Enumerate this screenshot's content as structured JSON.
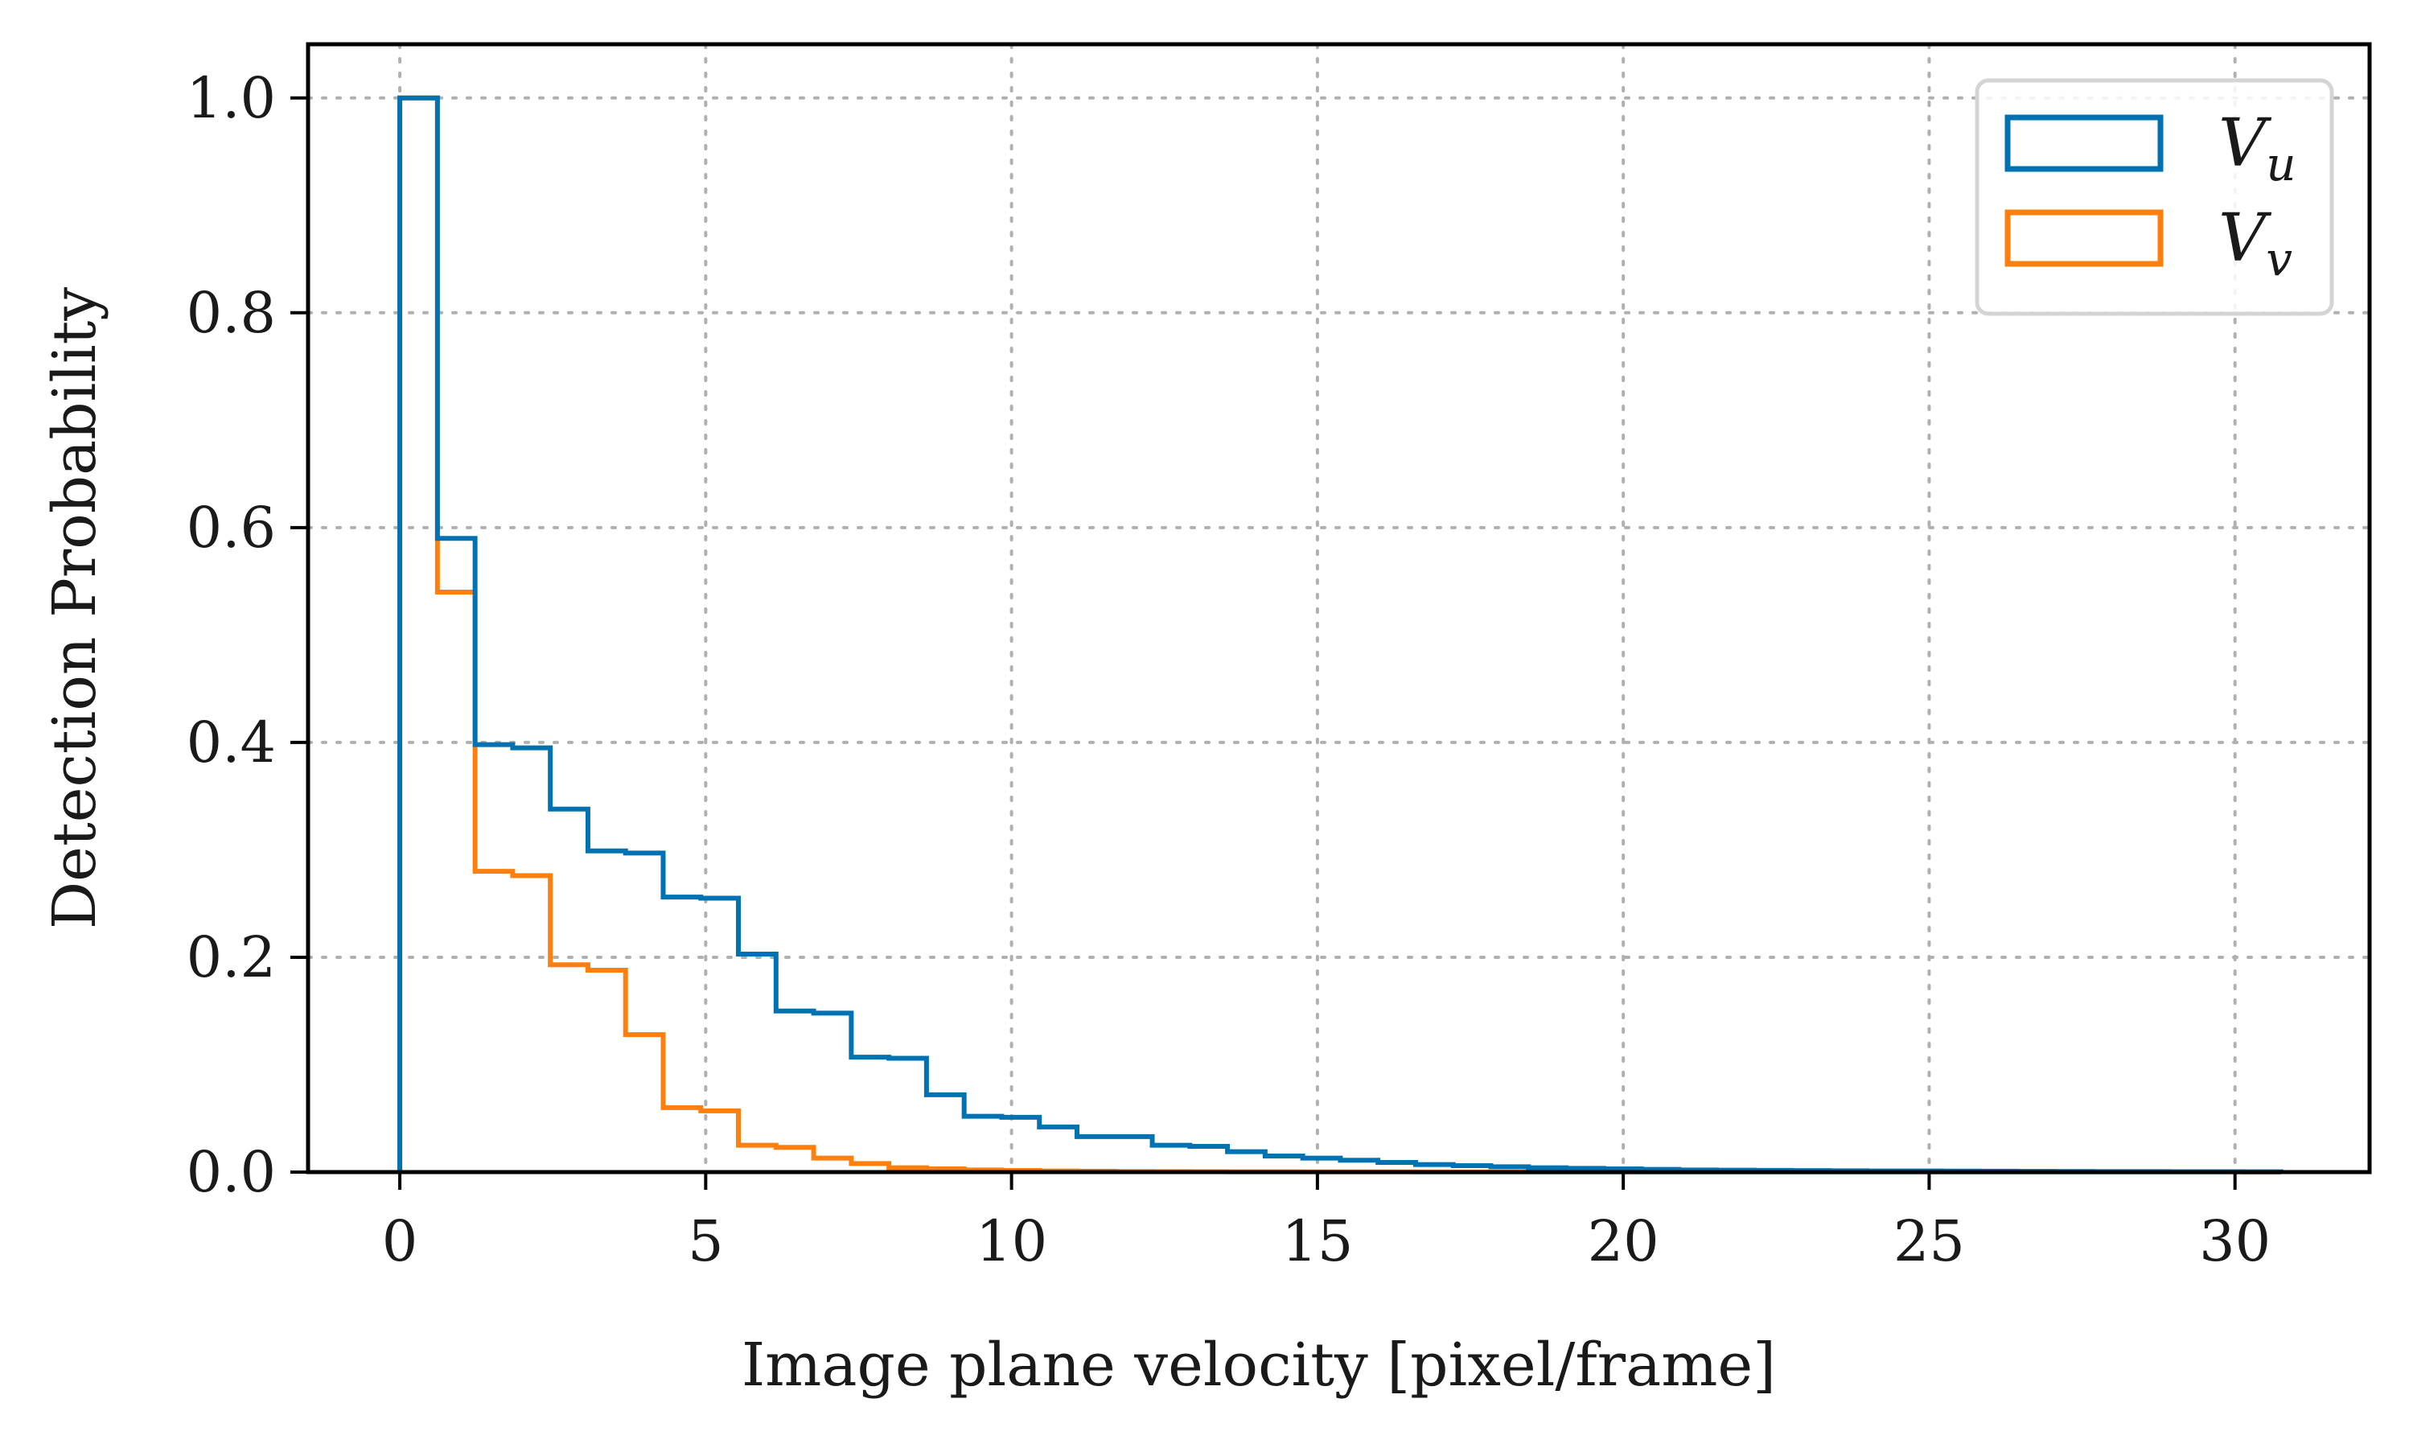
{
  "chart_data": {
    "type": "histogram-step",
    "title": "",
    "xlabel": "Image plane velocity [pixel/frame]",
    "ylabel": "Detection Probability",
    "xlim": [
      -1.5,
      32.2
    ],
    "ylim": [
      0,
      1.05
    ],
    "grid": true,
    "legend_position": "top-right",
    "xticks": [
      0,
      5,
      10,
      15,
      20,
      25,
      30
    ],
    "xtick_labels": [
      "0",
      "5",
      "10",
      "15",
      "20",
      "25",
      "30"
    ],
    "yticks": [
      0.0,
      0.2,
      0.4,
      0.6,
      0.8,
      1.0
    ],
    "ytick_labels": [
      "0.0",
      "0.2",
      "0.4",
      "0.6",
      "0.8",
      "1.0"
    ],
    "bin_edges": [
      0,
      0.615,
      1.23,
      1.845,
      2.46,
      3.075,
      3.69,
      4.305,
      4.92,
      5.535,
      6.15,
      6.765,
      7.38,
      7.995,
      8.61,
      9.225,
      9.84,
      10.455,
      11.07,
      11.685,
      12.3,
      12.915,
      13.53,
      14.145,
      14.76,
      15.375,
      15.99,
      16.605,
      17.22,
      17.835,
      18.45,
      19.065,
      19.68,
      20.295,
      20.91,
      21.525,
      22.14,
      22.755,
      23.37,
      23.985,
      24.6,
      25.215,
      25.83,
      26.445,
      27.06,
      27.675,
      28.29,
      28.905,
      29.52,
      30.135,
      30.75
    ],
    "series": [
      {
        "name": "V_u",
        "label_main": "V",
        "label_sub": "u",
        "color": "#0072b2",
        "values": [
          1.0,
          0.59,
          0.398,
          0.395,
          0.338,
          0.299,
          0.297,
          0.256,
          0.255,
          0.203,
          0.15,
          0.148,
          0.107,
          0.106,
          0.072,
          0.052,
          0.051,
          0.042,
          0.033,
          0.033,
          0.025,
          0.024,
          0.019,
          0.015,
          0.013,
          0.011,
          0.009,
          0.007,
          0.006,
          0.005,
          0.004,
          0.0035,
          0.003,
          0.0025,
          0.002,
          0.0018,
          0.0016,
          0.0014,
          0.0012,
          0.001,
          0.001,
          0.0009,
          0.0008,
          0.0007,
          0.0006,
          0.0005,
          0.0005,
          0.0004,
          0.0004,
          0.0003
        ]
      },
      {
        "name": "V_v",
        "label_main": "V",
        "label_sub": "v",
        "color": "#ff7f0e",
        "values": [
          1.0,
          0.54,
          0.28,
          0.276,
          0.193,
          0.188,
          0.128,
          0.06,
          0.057,
          0.025,
          0.023,
          0.013,
          0.008,
          0.004,
          0.003,
          0.002,
          0.0015,
          0.001,
          0.0008,
          0.0006,
          0.0005,
          0.0004,
          0.0003,
          0.0003,
          0.0002,
          0.0002,
          0.0002,
          0.0001,
          0.0001,
          0.0001,
          0.0001,
          0.0001,
          0.0001,
          0.0001,
          0.0001,
          0.0001,
          0.0001,
          0.0001,
          0.0001,
          0.0001,
          0.0001,
          0.0001,
          0.0001,
          0.0001,
          0.0001,
          0.0001,
          0.0001,
          0.0001,
          0.0001,
          0.0001
        ]
      }
    ]
  }
}
